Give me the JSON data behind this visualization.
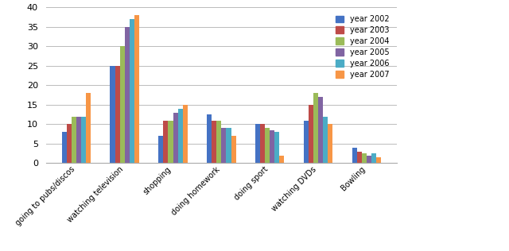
{
  "categories": [
    "going to pubs/discos",
    "watching television",
    "shopping",
    "doing homework",
    "doing sport",
    "watching DVDs",
    "Bowling"
  ],
  "series": {
    "year 2002": [
      8,
      25,
      7,
      12.5,
      10,
      11,
      4
    ],
    "year 2003": [
      10,
      25,
      11,
      11,
      10,
      15,
      3
    ],
    "year 2004": [
      12,
      30,
      11,
      11,
      9,
      18,
      2.5
    ],
    "year 2005": [
      12,
      35,
      13,
      9,
      8.5,
      17,
      2
    ],
    "year 2006": [
      12,
      37,
      14,
      9,
      8,
      12,
      2.5
    ],
    "year 2007": [
      18,
      38,
      15,
      7,
      2,
      10,
      1.5
    ]
  },
  "colors": {
    "year 2002": "#4472C4",
    "year 2003": "#BE4B48",
    "year 2004": "#9BBB59",
    "year 2005": "#8064A2",
    "year 2006": "#4BACC6",
    "year 2007": "#F79646"
  },
  "ylim": [
    0,
    40
  ],
  "yticks": [
    0,
    5,
    10,
    15,
    20,
    25,
    30,
    35,
    40
  ],
  "background_color": "#FFFFFF",
  "grid_color": "#BBBBBB",
  "bar_width": 0.1,
  "figsize": [
    6.4,
    3.16
  ],
  "dpi": 100
}
